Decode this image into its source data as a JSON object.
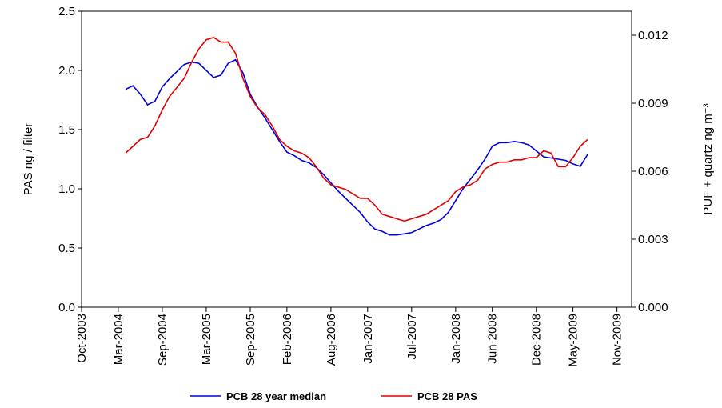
{
  "chart_data": {
    "type": "line",
    "ylabel": "PAS ng / filter",
    "y2label": "PUF + quartz ng m⁻³",
    "x": [
      "2004-04",
      "2004-05",
      "2004-06",
      "2004-07",
      "2004-08",
      "2004-09",
      "2004-10",
      "2004-11",
      "2004-12",
      "2005-01",
      "2005-02",
      "2005-03",
      "2005-04",
      "2005-05",
      "2005-06",
      "2005-07",
      "2005-08",
      "2005-09",
      "2005-10",
      "2005-11",
      "2005-12",
      "2006-01",
      "2006-02",
      "2006-03",
      "2006-04",
      "2006-05",
      "2006-06",
      "2006-07",
      "2006-08",
      "2006-09",
      "2006-10",
      "2006-11",
      "2006-12",
      "2007-01",
      "2007-02",
      "2007-03",
      "2007-04",
      "2007-05",
      "2007-06",
      "2007-07",
      "2007-08",
      "2007-09",
      "2007-10",
      "2007-11",
      "2007-12",
      "2008-01",
      "2008-02",
      "2008-03",
      "2008-04",
      "2008-05",
      "2008-06",
      "2008-07",
      "2008-08",
      "2008-09",
      "2008-10",
      "2008-11",
      "2008-12",
      "2009-01",
      "2009-02",
      "2009-03",
      "2009-04",
      "2009-05",
      "2009-06",
      "2009-07"
    ],
    "series": [
      {
        "name": "PCB 28 year median",
        "color": "#0000e0",
        "axis": "y",
        "values": [
          1.84,
          1.87,
          1.8,
          1.71,
          1.74,
          1.86,
          1.93,
          1.99,
          2.05,
          2.07,
          2.06,
          2.0,
          1.94,
          1.96,
          2.06,
          2.09,
          1.98,
          1.8,
          1.69,
          1.6,
          1.5,
          1.4,
          1.31,
          1.28,
          1.24,
          1.22,
          1.18,
          1.12,
          1.05,
          0.98,
          0.92,
          0.86,
          0.8,
          0.72,
          0.66,
          0.64,
          0.61,
          0.61,
          0.62,
          0.63,
          0.66,
          0.69,
          0.71,
          0.74,
          0.8,
          0.9,
          1.0,
          1.08,
          1.16,
          1.25,
          1.36,
          1.39,
          1.39,
          1.4,
          1.39,
          1.37,
          1.32,
          1.27,
          1.26,
          1.25,
          1.24,
          1.21,
          1.19,
          1.29
        ]
      },
      {
        "name": "PCB 28 PAS",
        "color": "#e00000",
        "axis": "y2",
        "values": [
          0.0068,
          0.0071,
          0.0074,
          0.0075,
          0.008,
          0.0087,
          0.0093,
          0.0097,
          0.0101,
          0.0108,
          0.0114,
          0.0118,
          0.0119,
          0.0117,
          0.0117,
          0.0112,
          0.0101,
          0.0093,
          0.0088,
          0.0085,
          0.008,
          0.0074,
          0.0071,
          0.0069,
          0.0068,
          0.0066,
          0.0062,
          0.0057,
          0.0054,
          0.0053,
          0.0052,
          0.005,
          0.0048,
          0.0048,
          0.0045,
          0.0041,
          0.004,
          0.0039,
          0.0038,
          0.0039,
          0.004,
          0.0041,
          0.0043,
          0.0045,
          0.0047,
          0.0051,
          0.0053,
          0.0054,
          0.0056,
          0.0061,
          0.0063,
          0.0064,
          0.0064,
          0.0065,
          0.0065,
          0.0066,
          0.0066,
          0.0069,
          0.0068,
          0.0062,
          0.0062,
          0.0066,
          0.0071,
          0.0074
        ]
      }
    ],
    "xlim": [
      "2003-10",
      "2010-01"
    ],
    "xticks": [
      {
        "value": "2003-10",
        "label": "Oct-2003"
      },
      {
        "value": "2004-03",
        "label": "Mar-2004"
      },
      {
        "value": "2004-09",
        "label": "Sep-2004"
      },
      {
        "value": "2005-03",
        "label": "Mar-2005"
      },
      {
        "value": "2005-09",
        "label": "Sep-2005"
      },
      {
        "value": "2006-02",
        "label": "Feb-2006"
      },
      {
        "value": "2006-08",
        "label": "Aug-2006"
      },
      {
        "value": "2007-01",
        "label": "Jan-2007"
      },
      {
        "value": "2007-07",
        "label": "Jul-2007"
      },
      {
        "value": "2008-01",
        "label": "Jan-2008"
      },
      {
        "value": "2008-06",
        "label": "Jun-2008"
      },
      {
        "value": "2008-12",
        "label": "Dec-2008"
      },
      {
        "value": "2009-05",
        "label": "May-2009"
      },
      {
        "value": "2009-11",
        "label": "Nov-2009"
      }
    ],
    "ylim": [
      0,
      2.5
    ],
    "yticks": [
      {
        "value": 0,
        "label": "0.0"
      },
      {
        "value": 0.5,
        "label": "0.5"
      },
      {
        "value": 1,
        "label": "1.0"
      },
      {
        "value": 1.5,
        "label": "1.5"
      },
      {
        "value": 2,
        "label": "2.0"
      },
      {
        "value": 2.5,
        "label": "2.5"
      }
    ],
    "y2lim": [
      0,
      0.01306
    ],
    "y2ticks": [
      {
        "value": 0,
        "label": "0.000"
      },
      {
        "value": 0.003,
        "label": "0.003"
      },
      {
        "value": 0.006,
        "label": "0.006"
      },
      {
        "value": 0.009,
        "label": "0.009"
      },
      {
        "value": 0.012,
        "label": "0.012"
      }
    ],
    "legend": "bottom"
  }
}
